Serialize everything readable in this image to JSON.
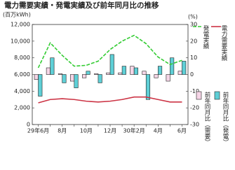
{
  "chart_data": {
    "type": "bar-line",
    "title": "電力需要実績・発電実績及び前年同月比の推移",
    "y_label": "(百万kWh)",
    "y2_label": "(%)",
    "categories": [
      "29年6月",
      null,
      "8月",
      null,
      "10月",
      null,
      "12月",
      null,
      "30年2月",
      null,
      "4月",
      null,
      "6月"
    ],
    "ylim": [
      0,
      12000
    ],
    "yticks": [
      0,
      {
        "value": 2000,
        "label": "2,000"
      },
      {
        "value": 4000,
        "label": "4,000"
      },
      {
        "value": 6000,
        "label": "6,000"
      },
      {
        "value": 8000,
        "label": "8,000"
      },
      {
        "value": 10000,
        "label": "10,000"
      },
      {
        "value": 12000,
        "label": "12,000"
      }
    ],
    "y2lim": [
      -30,
      30
    ],
    "y2ticks": [
      -30,
      -20,
      -10,
      0,
      10,
      20,
      30
    ],
    "series": [
      {
        "name": "発電実績",
        "kind": "line",
        "dash": true,
        "color": "#33cc33",
        "values": [
          6800,
          9800,
          8300,
          7000,
          7100,
          7600,
          9000,
          10000,
          10700,
          9700,
          8100,
          7200,
          7700
        ]
      },
      {
        "name": "電力需要実績",
        "kind": "line",
        "color": "#cc3344",
        "values": [
          2600,
          3000,
          3100,
          3000,
          2800,
          2700,
          2800,
          3000,
          3300,
          3300,
          3000,
          2700,
          2700
        ]
      },
      {
        "name": "前年同月比（需要）",
        "kind": "bar",
        "axis": "y2",
        "color": "#f5d5e6",
        "values": [
          -3,
          4,
          0.5,
          -4,
          -2,
          0.5,
          1,
          1,
          5,
          2,
          -2,
          -4,
          2
        ]
      },
      {
        "name": "前年同月比（発電）",
        "kind": "bar",
        "axis": "y2",
        "color": "#5ecfd6",
        "values": [
          -13,
          10,
          -5,
          -8,
          2,
          -5,
          12,
          5,
          4,
          -15,
          5,
          10,
          8
        ]
      }
    ]
  }
}
